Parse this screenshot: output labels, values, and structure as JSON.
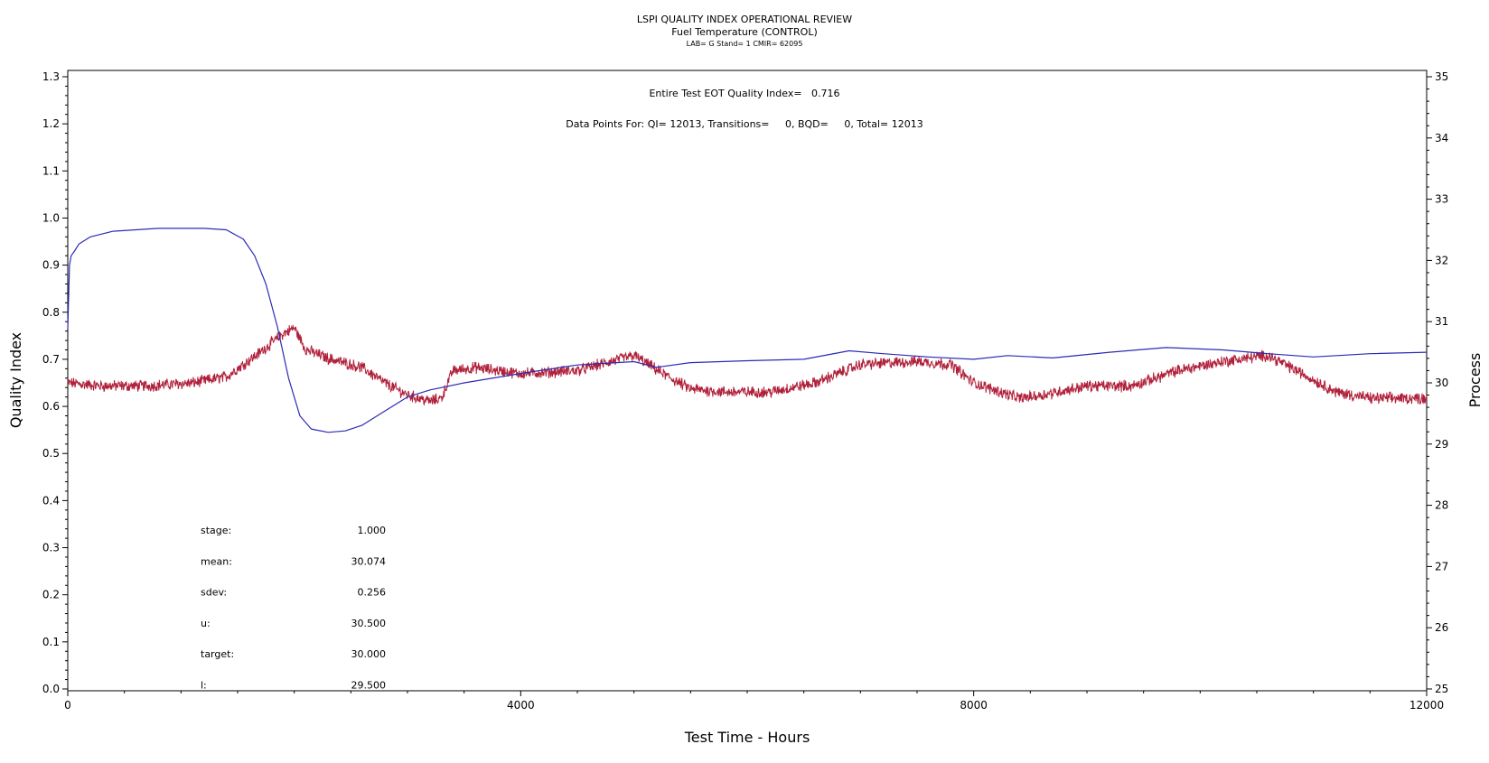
{
  "chart_data": {
    "type": "line",
    "title": "LSPI QUALITY INDEX OPERATIONAL REVIEW",
    "subtitle": "Fuel Temperature (CONTROL)",
    "subtitle2": "LAB= G Stand= 1 CMIR= 62095",
    "xlabel": "Test Time - Hours",
    "ylabel_left": "Quality Index",
    "ylabel_right": "Process",
    "xlim": [
      0,
      12000
    ],
    "ylim_left": [
      0.0,
      1.3
    ],
    "ylim_right": [
      25,
      35
    ],
    "x_ticks": [
      0,
      4000,
      8000,
      12000
    ],
    "y_left_ticks": [
      "0.0",
      "0.1",
      "0.2",
      "0.3",
      "0.4",
      "0.5",
      "0.6",
      "0.7",
      "0.8",
      "0.9",
      "1.0",
      "1.1",
      "1.2",
      "1.3"
    ],
    "y_right_ticks": [
      "25",
      "26",
      "27",
      "28",
      "29",
      "30",
      "31",
      "32",
      "33",
      "34",
      "35"
    ],
    "annotations": {
      "eot": "Entire Test EOT Quality Index=   0.716",
      "points": "Data Points For: QI= 12013, Transitions=     0, BQD=     0, Total= 12013"
    },
    "stats": [
      {
        "label": "stage:",
        "value": "1.000"
      },
      {
        "label": "mean:",
        "value": "30.074"
      },
      {
        "label": "sdev:",
        "value": "0.256"
      },
      {
        "label": "u:",
        "value": "30.500"
      },
      {
        "label": "target:",
        "value": "30.000"
      },
      {
        "label": "l:",
        "value": "29.500"
      }
    ],
    "series": [
      {
        "axis": "left",
        "color": "#2b2bb5",
        "x": [
          0,
          15,
          30,
          60,
          100,
          200,
          400,
          800,
          1200,
          1400,
          1550,
          1650,
          1750,
          1850,
          1950,
          2050,
          2150,
          2300,
          2450,
          2600,
          2800,
          3000,
          3200,
          3500,
          4000,
          4500,
          5000,
          5200,
          5500,
          6000,
          6500,
          6900,
          7200,
          7600,
          8000,
          8300,
          8700,
          9200,
          9700,
          10200,
          10600,
          11000,
          11500,
          12000
        ],
        "y": [
          0.765,
          0.9,
          0.92,
          0.93,
          0.945,
          0.96,
          0.972,
          0.978,
          0.978,
          0.975,
          0.955,
          0.92,
          0.86,
          0.77,
          0.66,
          0.58,
          0.552,
          0.545,
          0.548,
          0.56,
          0.59,
          0.62,
          0.635,
          0.65,
          0.67,
          0.688,
          0.695,
          0.683,
          0.693,
          0.697,
          0.7,
          0.718,
          0.712,
          0.705,
          0.7,
          0.708,
          0.703,
          0.715,
          0.725,
          0.72,
          0.712,
          0.705,
          0.712,
          0.715
        ]
      },
      {
        "axis": "right",
        "color": "#b0203a",
        "x": [
          0,
          300,
          700,
          1100,
          1400,
          1700,
          1900,
          2000,
          2100,
          2300,
          2600,
          2800,
          3000,
          3200,
          3300,
          3400,
          3600,
          4000,
          4500,
          5000,
          5300,
          5500,
          5800,
          6200,
          6600,
          7000,
          7500,
          7800,
          8000,
          8400,
          8600,
          9000,
          9400,
          9800,
          10200,
          10600,
          10900,
          11200,
          11500,
          12000
        ],
        "y": [
          30.0,
          29.95,
          29.95,
          30.0,
          30.1,
          30.5,
          30.8,
          30.9,
          30.55,
          30.4,
          30.25,
          30.0,
          29.8,
          29.7,
          29.75,
          30.2,
          30.25,
          30.15,
          30.2,
          30.45,
          30.1,
          29.9,
          29.85,
          29.85,
          30.0,
          30.3,
          30.35,
          30.3,
          30.0,
          29.75,
          29.8,
          29.95,
          29.95,
          30.2,
          30.35,
          30.45,
          30.15,
          29.85,
          29.75,
          29.75
        ]
      }
    ]
  }
}
